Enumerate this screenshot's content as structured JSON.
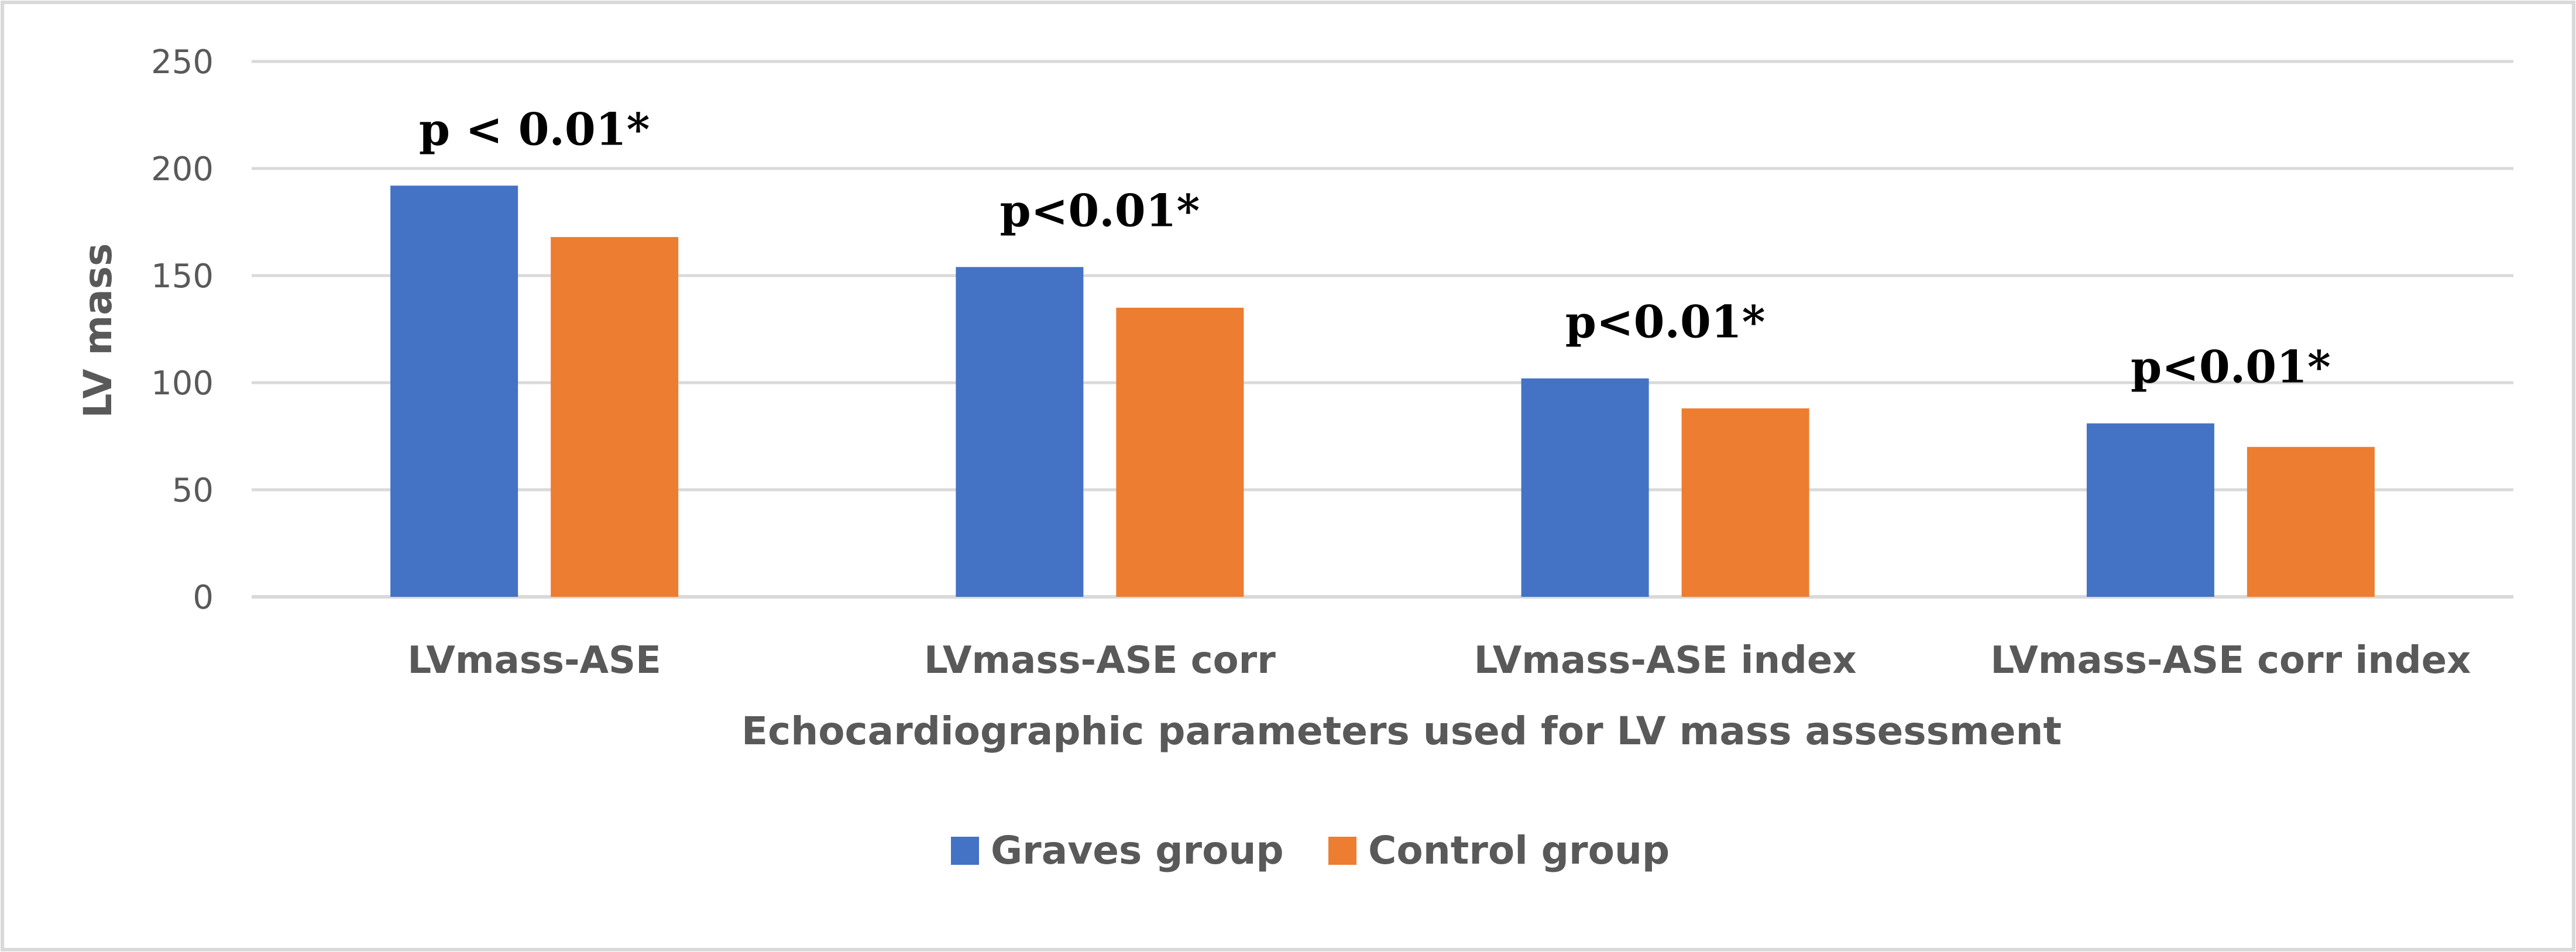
{
  "chart_data": {
    "type": "bar",
    "title": "",
    "xlabel": "Echocardiographic parameters used for LV mass assessment",
    "ylabel": "LV mass",
    "ylim": [
      0,
      250
    ],
    "yticks": [
      0,
      50,
      100,
      150,
      200,
      250
    ],
    "grid": true,
    "legend_position": "bottom",
    "categories": [
      "LVmass-ASE",
      "LVmass-ASE corr",
      "LVmass-ASE index",
      "LVmass-ASE corr index"
    ],
    "series": [
      {
        "name": "Graves group",
        "color": "#4472C4",
        "values": [
          192,
          154,
          102,
          81
        ]
      },
      {
        "name": "Control group",
        "color": "#ED7D31",
        "values": [
          168,
          135,
          88,
          70
        ]
      }
    ],
    "annotations": [
      "p < 0.01*",
      "p<0.01*",
      "p<0.01*",
      "p<0.01*"
    ]
  }
}
